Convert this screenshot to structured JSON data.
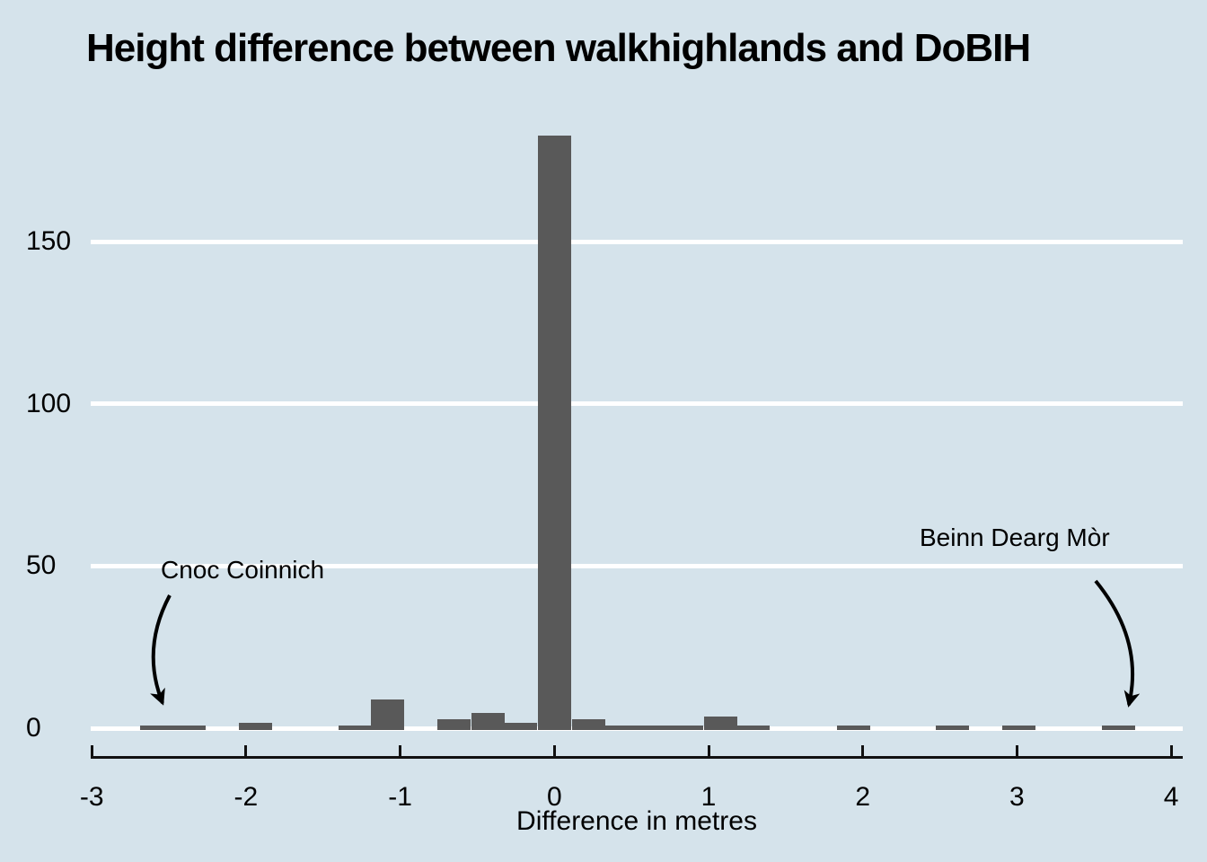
{
  "title": "Height difference between walkhighlands and DoBIH",
  "colors": {
    "background": "#d5e3eb",
    "bar": "#595959",
    "gridline": "#ffffff",
    "axis": "#111111",
    "text": "#000000"
  },
  "chart_data": {
    "type": "bar",
    "subtype": "histogram",
    "title": "Height difference between walkhighlands and DoBIH",
    "xlabel": "Difference in metres",
    "ylabel": "",
    "xlim": [
      -3,
      4
    ],
    "ylim": [
      0,
      190
    ],
    "x_ticks": [
      "-3",
      "-2",
      "-1",
      "0",
      "1",
      "2",
      "3",
      "4"
    ],
    "y_ticks": [
      "0",
      "50",
      "100",
      "150"
    ],
    "grid": "horizontal white lines at y ticks",
    "legend": "none",
    "binwidth": 0.22,
    "bars": [
      {
        "x": -2.58,
        "count": 1
      },
      {
        "x": -2.37,
        "count": 1
      },
      {
        "x": -1.94,
        "count": 2
      },
      {
        "x": -1.29,
        "count": 1
      },
      {
        "x": -1.08,
        "count": 9
      },
      {
        "x": -0.65,
        "count": 3
      },
      {
        "x": -0.43,
        "count": 5
      },
      {
        "x": -0.22,
        "count": 2
      },
      {
        "x": 0,
        "count": 183
      },
      {
        "x": 0.22,
        "count": 3
      },
      {
        "x": 0.43,
        "count": 1
      },
      {
        "x": 0.65,
        "count": 1
      },
      {
        "x": 0.86,
        "count": 1
      },
      {
        "x": 1.08,
        "count": 4
      },
      {
        "x": 1.29,
        "count": 1
      },
      {
        "x": 1.94,
        "count": 1
      },
      {
        "x": 2.58,
        "count": 1
      },
      {
        "x": 3.01,
        "count": 1
      },
      {
        "x": 3.66,
        "count": 1
      }
    ],
    "annotations": [
      {
        "label": "Cnoc Coinnich",
        "points_to_x": -2.5
      },
      {
        "label": "Beinn Dearg Mòr",
        "points_to_x": 3.66
      }
    ]
  }
}
